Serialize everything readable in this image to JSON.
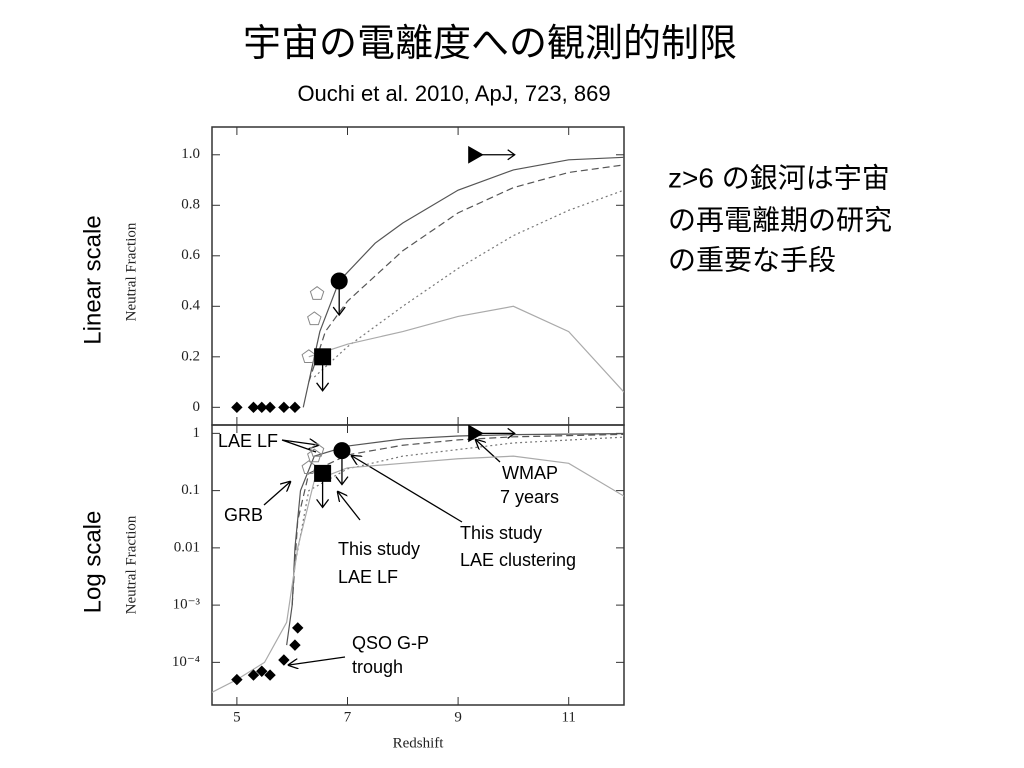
{
  "slide": {
    "title": "宇宙の電離度への観測的制限",
    "subtitle": "Ouchi  et al. 2010, ApJ, 723, 869",
    "text_lines": [
      "z>6 の銀河は宇宙",
      "の再電離期の研究",
      "の重要な手段"
    ]
  },
  "chart_data": [
    {
      "type": "line",
      "log_y": false,
      "scale_label": "Linear scale",
      "ylabel": "Neutral Fraction",
      "xlim": [
        4.55,
        12
      ],
      "xticks": [
        5,
        7,
        9,
        11
      ],
      "xtick_labels": false,
      "ylim": [
        -0.07,
        1.11
      ],
      "yticks": [
        0,
        0.2,
        0.4,
        0.6,
        0.8,
        {
          "value": 1,
          "label": "1.0"
        }
      ],
      "series": [
        {
          "x": [
            6.2,
            6.5,
            6.85,
            7.5,
            8,
            9,
            10,
            11,
            12
          ],
          "values": [
            0,
            0.3,
            0.5,
            0.65,
            0.73,
            0.86,
            0.94,
            0.98,
            0.99
          ],
          "color": "#555",
          "dash": ""
        },
        {
          "x": [
            6.3,
            6.6,
            7,
            8,
            9,
            10,
            11,
            12
          ],
          "values": [
            0.1,
            0.3,
            0.42,
            0.62,
            0.77,
            0.87,
            0.93,
            0.96
          ],
          "color": "#555",
          "dash": "7 4"
        },
        {
          "x": [
            6.4,
            7,
            8,
            9,
            10,
            11,
            12
          ],
          "values": [
            0.12,
            0.24,
            0.4,
            0.55,
            0.68,
            0.78,
            0.86
          ],
          "color": "#777",
          "dash": "2 3"
        },
        {
          "x": [
            6.3,
            7,
            8,
            9,
            10,
            11,
            12
          ],
          "values": [
            0.2,
            0.25,
            0.3,
            0.36,
            0.4,
            0.3,
            0.06
          ],
          "color": "#aaa",
          "dash": ""
        },
        {
          "x": [
            5,
            5.3,
            5.45,
            5.6,
            5.85,
            6.05
          ],
          "values": [
            0,
            0,
            0,
            0,
            0,
            0
          ],
          "marker": "diamond",
          "color": "#000"
        },
        {
          "x": [
            6.3,
            6.4,
            6.45
          ],
          "values": [
            0.2,
            0.35,
            0.45
          ],
          "marker": "pentagon",
          "color": "#888"
        },
        {
          "x": [
            6.55
          ],
          "values": [
            0.2
          ],
          "marker": "square",
          "color": "#000",
          "limit": "upper"
        },
        {
          "x": [
            6.85
          ],
          "values": [
            0.5
          ],
          "marker": "circle",
          "color": "#000",
          "limit": "upper"
        },
        {
          "x": [
            9.3
          ],
          "values": [
            1
          ],
          "marker": "triangle",
          "color": "#000",
          "limit": "lower-x"
        }
      ]
    },
    {
      "type": "line",
      "log_y": true,
      "scale_label": "Log scale",
      "ylabel": "Neutral Fraction",
      "xlabel": "Redshift",
      "xlim": [
        4.55,
        12
      ],
      "xticks": [
        5,
        7,
        9,
        11
      ],
      "ylim": [
        1.8e-05,
        1.4
      ],
      "yticks": [
        {
          "value": 0.0001,
          "label": "10⁻⁴"
        },
        {
          "value": 0.001,
          "label": "10⁻³"
        },
        0.01,
        0.1,
        1
      ],
      "series": [
        {
          "x": [
            5.9,
            6,
            6.05,
            6.15,
            6.4,
            7,
            8,
            9,
            10,
            12
          ],
          "values": [
            0.0002,
            0.001,
            0.01,
            0.1,
            0.4,
            0.6,
            0.8,
            0.9,
            0.95,
            0.99
          ],
          "color": "#555",
          "dash": ""
        },
        {
          "x": [
            6,
            6.1,
            6.3,
            7,
            8,
            9,
            10,
            12
          ],
          "values": [
            0.001,
            0.03,
            0.2,
            0.42,
            0.62,
            0.77,
            0.87,
            0.96
          ],
          "color": "#555",
          "dash": "7 4"
        },
        {
          "x": [
            6.05,
            6.3,
            7,
            8,
            10,
            12
          ],
          "values": [
            0.005,
            0.1,
            0.24,
            0.4,
            0.68,
            0.86
          ],
          "color": "#777",
          "dash": "2 3"
        },
        {
          "x": [
            4.55,
            5,
            5.5,
            5.9,
            6.1,
            6.4,
            7,
            8,
            9,
            10,
            11,
            12
          ],
          "values": [
            3e-05,
            5e-05,
            0.0001,
            0.0005,
            0.01,
            0.15,
            0.25,
            0.3,
            0.36,
            0.4,
            0.3,
            0.08
          ],
          "color": "#aaa",
          "dash": ""
        },
        {
          "x": [
            5,
            5.3,
            5.45,
            5.6,
            5.85,
            6.05,
            6.1
          ],
          "values": [
            5e-05,
            6e-05,
            7e-05,
            6e-05,
            0.00011,
            0.0002,
            0.0004
          ],
          "marker": "diamond",
          "color": "#000"
        },
        {
          "x": [
            6.3,
            6.4,
            6.45
          ],
          "values": [
            0.25,
            0.4,
            0.5
          ],
          "marker": "pentagon",
          "color": "#888"
        },
        {
          "x": [
            6.55
          ],
          "values": [
            0.2
          ],
          "marker": "square",
          "color": "#000",
          "limit": "upper"
        },
        {
          "x": [
            6.9
          ],
          "values": [
            0.5
          ],
          "marker": "circle",
          "color": "#000",
          "limit": "upper"
        },
        {
          "x": [
            9.3
          ],
          "values": [
            1
          ],
          "marker": "triangle",
          "color": "#000",
          "limit": "lower-x"
        }
      ],
      "annotations": [
        {
          "lines": [
            "LAE LF"
          ]
        },
        {
          "lines": [
            "GRB"
          ]
        },
        {
          "lines": [
            "This study",
            "LAE LF"
          ]
        },
        {
          "lines": [
            "This study",
            "LAE  clustering"
          ]
        },
        {
          "lines": [
            "WMAP",
            "7 years"
          ]
        },
        {
          "lines": [
            "QSO G-P",
            "trough"
          ]
        }
      ]
    }
  ]
}
